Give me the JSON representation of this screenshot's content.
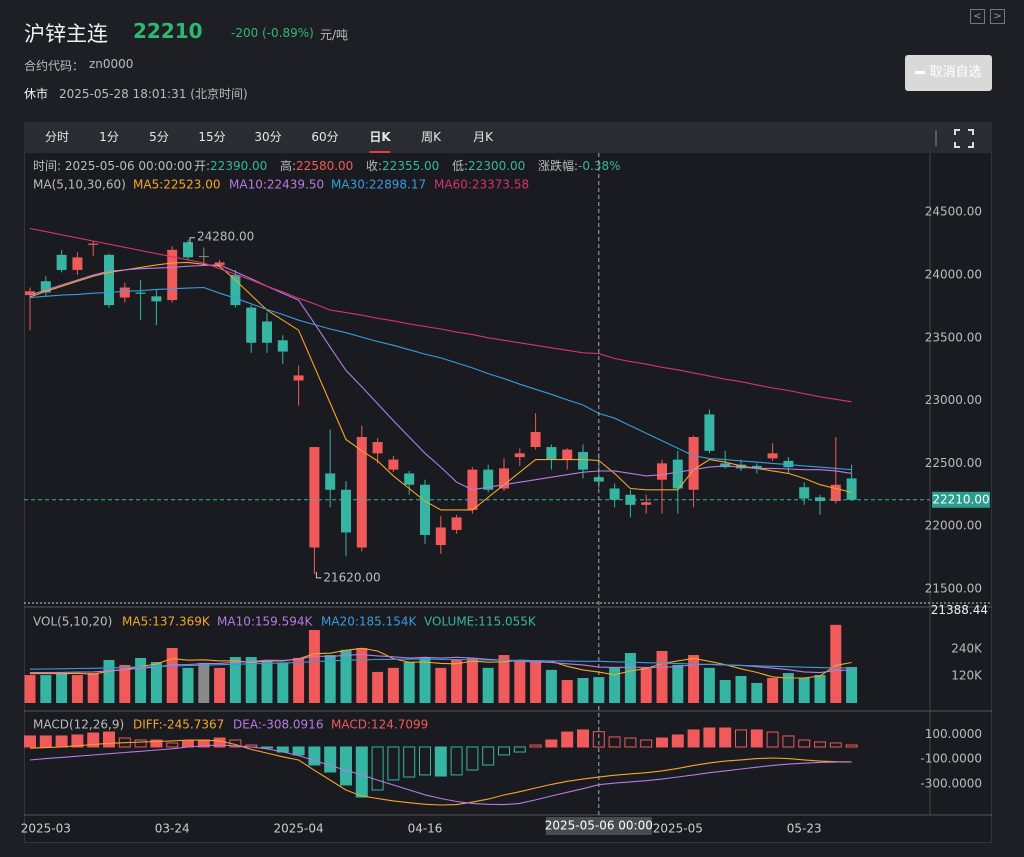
{
  "header": {
    "title": "沪锌主连",
    "price": "22210",
    "change": "-200 (-0.89%)",
    "unit": "元/吨",
    "code_label": "合约代码：",
    "code": "zn0000",
    "status": "休市",
    "time": "2025-05-28 18:01:31 (北京时间)",
    "button": "取消自选"
  },
  "tabs": [
    "分时",
    "1分",
    "5分",
    "15分",
    "30分",
    "60分",
    "日K",
    "周K",
    "月K"
  ],
  "active_tab": 6,
  "chart_data": [
    {
      "type": "candlestick",
      "up_color": "#f05a5a",
      "down_color": "#35b5a2",
      "flat_color": "#8a8a8a",
      "categories": [
        null,
        "2025-03",
        null,
        null,
        null,
        null,
        null,
        null,
        null,
        "03-24",
        null,
        null,
        null,
        null,
        null,
        null,
        null,
        "2025-04",
        null,
        null,
        null,
        null,
        null,
        null,
        null,
        "04-16",
        null,
        null,
        null,
        null,
        null,
        null,
        null,
        null,
        null,
        null,
        null,
        null,
        null,
        null,
        null,
        "2025-05",
        null,
        null,
        null,
        null,
        null,
        null,
        null,
        "05-23",
        null,
        null,
        null
      ],
      "open": [
        23840,
        23950,
        24160,
        24040,
        24240,
        24160,
        23820,
        23860,
        23830,
        23800,
        24260,
        24150,
        24080,
        24000,
        23740,
        23630,
        23480,
        23160,
        21830,
        22420,
        22290,
        21830,
        22580,
        22450,
        22420,
        22330,
        21850,
        21970,
        22130,
        22450,
        22300,
        22550,
        22630,
        22630,
        22530,
        22590,
        22390,
        22300,
        22250,
        22170,
        22370,
        22530,
        22290,
        22890,
        22500,
        22490,
        22480,
        22540,
        22520,
        22310,
        22230,
        22200,
        22380
      ],
      "high": [
        23900,
        23990,
        24200,
        24180,
        24270,
        24170,
        23940,
        23960,
        23880,
        24230,
        24280,
        24220,
        24120,
        24040,
        23760,
        23700,
        23520,
        23280,
        22630,
        22770,
        22360,
        22800,
        22700,
        22560,
        22440,
        22370,
        22080,
        22090,
        22470,
        22490,
        22540,
        22620,
        22900,
        22650,
        22620,
        22650,
        22580,
        22340,
        22290,
        22250,
        22530,
        22600,
        22720,
        22930,
        22600,
        22530,
        22500,
        22660,
        22550,
        22350,
        22250,
        22710,
        22490
      ],
      "low": [
        23560,
        23830,
        24020,
        24000,
        24150,
        23740,
        23780,
        23640,
        23600,
        23780,
        24120,
        24080,
        24060,
        23740,
        23380,
        23380,
        23290,
        22960,
        21620,
        22150,
        21760,
        21800,
        22500,
        22430,
        22250,
        21860,
        21780,
        21940,
        22100,
        22270,
        22280,
        22480,
        22610,
        22450,
        22450,
        22380,
        22300,
        22150,
        22070,
        22100,
        22100,
        22100,
        22150,
        22580,
        22460,
        22440,
        22420,
        22520,
        22420,
        22170,
        22090,
        22180,
        22200
      ],
      "close": [
        23870,
        23860,
        24040,
        24140,
        24250,
        23760,
        23900,
        23850,
        23790,
        24200,
        24140,
        24150,
        24100,
        23760,
        23460,
        23460,
        23390,
        23200,
        22630,
        22290,
        21950,
        22710,
        22670,
        22530,
        22330,
        21930,
        21990,
        22070,
        22450,
        22290,
        22460,
        22580,
        22750,
        22530,
        22610,
        22450,
        22355,
        22210,
        22170,
        22190,
        22500,
        22300,
        22710,
        22600,
        22470,
        22460,
        22460,
        22580,
        22470,
        22220,
        22200,
        22330,
        22210
      ],
      "ylim": [
        21388.44,
        24955
      ],
      "yticks": [
        {
          "value": 21388.44,
          "label": "21388.44"
        },
        {
          "value": 21500,
          "label": "21500.00"
        },
        {
          "value": 22000,
          "label": "22000.00"
        },
        {
          "value": 22500,
          "label": "22500.00"
        },
        {
          "value": 23000,
          "label": "23000.00"
        },
        {
          "value": 23500,
          "label": "23500.00"
        },
        {
          "value": 24000,
          "label": "24000.00"
        },
        {
          "value": 24500,
          "label": "24500.00"
        }
      ],
      "last_price": {
        "value": 22210,
        "label": "22210.00"
      },
      "high_label": "24280.00",
      "low_label": "21620.00",
      "selected_index": 36,
      "selected_label": "2025-05-06 00:00",
      "readout": [
        {
          "label": "时间: ",
          "value": "2025-05-06 00:00:00",
          "color": "#bbbbbb"
        },
        {
          "label": "开:",
          "value": "22390.00",
          "color": "#35b5a2"
        },
        {
          "label": "高:",
          "value": "22580.00",
          "color": "#f05a5a"
        },
        {
          "label": "收:",
          "value": "22355.00",
          "color": "#35b5a2"
        },
        {
          "label": "低:",
          "value": "22300.00",
          "color": "#35b5a2"
        },
        {
          "label": "涨跌幅:",
          "value": "-0.38%",
          "color": "#35b5a2"
        }
      ],
      "legend_title": "MA(5,10,30,60)",
      "series": [
        {
          "name": "MA5:22523.00",
          "color": "#f5a623",
          "values": [
            23825,
            23870,
            23910,
            23950,
            23990,
            24020,
            24040,
            24060,
            24080,
            24095,
            24100,
            24085,
            24070,
            23960,
            23840,
            23720,
            23640,
            23560,
            23270,
            22980,
            22690,
            22600,
            22520,
            22400,
            22300,
            22200,
            22130,
            22130,
            22130,
            22230,
            22330,
            22430,
            22530,
            22530,
            22530,
            22530,
            22523,
            22420,
            22300,
            22290,
            22290,
            22290,
            22450,
            22530,
            22510,
            22480,
            22460,
            22440,
            22420,
            22380,
            22330,
            22300,
            22270
          ]
        },
        {
          "name": "MA10:22439.50",
          "color": "#b57be0",
          "values": [
            23840,
            23880,
            23920,
            23960,
            24000,
            24030,
            24040,
            24050,
            24055,
            24060,
            24070,
            24075,
            24080,
            24025,
            23970,
            23910,
            23855,
            23800,
            23615,
            23425,
            23240,
            23110,
            22975,
            22840,
            22710,
            22580,
            22470,
            22350,
            22290,
            22310,
            22330,
            22350,
            22370,
            22390,
            22410,
            22430,
            22439.5,
            22440,
            22420,
            22400,
            22410,
            22430,
            22450,
            22470,
            22480,
            22470,
            22460,
            22460,
            22455,
            22450,
            22450,
            22440,
            22420
          ]
        },
        {
          "name": "MA30:22898.17",
          "color": "#3a9bdc",
          "values": [
            23820,
            23830,
            23840,
            23845,
            23855,
            23860,
            23870,
            23875,
            23885,
            23890,
            23895,
            23900,
            23855,
            23815,
            23770,
            23725,
            23685,
            23640,
            23605,
            23570,
            23540,
            23505,
            23470,
            23440,
            23405,
            23370,
            23340,
            23300,
            23260,
            23215,
            23175,
            23130,
            23090,
            23050,
            23005,
            22965,
            22898.17,
            22860,
            22800,
            22740,
            22680,
            22620,
            22560,
            22540,
            22530,
            22520,
            22510,
            22500,
            22490,
            22480,
            22470,
            22460,
            22450
          ]
        },
        {
          "name": "MA60:23373.58",
          "color": "#d6336c",
          "values": [
            24370,
            24345,
            24320,
            24295,
            24270,
            24245,
            24220,
            24195,
            24170,
            24145,
            24120,
            24095,
            24050,
            24005,
            23960,
            23910,
            23865,
            23815,
            23770,
            23720,
            23700,
            23680,
            23655,
            23635,
            23610,
            23590,
            23570,
            23545,
            23525,
            23500,
            23480,
            23460,
            23440,
            23420,
            23400,
            23380,
            23373.58,
            23335,
            23310,
            23290,
            23265,
            23245,
            23220,
            23195,
            23170,
            23150,
            23125,
            23100,
            23080,
            23055,
            23030,
            23010,
            22990
          ]
        }
      ]
    },
    {
      "type": "bar",
      "legend_title": "VOL(5,10,20)",
      "name": "VOLUME:115.055K",
      "values": [
        124,
        124,
        133,
        124,
        133,
        191,
        169,
        200,
        182,
        244,
        156,
        178,
        156,
        204,
        204,
        191,
        178,
        200,
        324,
        213,
        236,
        244,
        138,
        156,
        182,
        200,
        156,
        191,
        200,
        156,
        213,
        191,
        182,
        147,
        102,
        111,
        115.055,
        156,
        222,
        156,
        231,
        169,
        213,
        156,
        102,
        120,
        89,
        111,
        133,
        111,
        124,
        347,
        160
      ],
      "ylim": [
        0,
        404
      ],
      "yticks": [
        {
          "value": 120,
          "label": "120K"
        },
        {
          "value": 240,
          "label": "240K"
        }
      ],
      "series": [
        {
          "name": "MA5:137.369K",
          "color": "#f5a623",
          "values": [
            130,
            131,
            130,
            132,
            128,
            141,
            149,
            162,
            173,
            197,
            190,
            192,
            187,
            188,
            180,
            187,
            187,
            196,
            219,
            221,
            234,
            243,
            231,
            197,
            181,
            182,
            176,
            174,
            186,
            181,
            183,
            190,
            188,
            185,
            163,
            147,
            137.369,
            125,
            142,
            153,
            175,
            187,
            198,
            185,
            170,
            152,
            136,
            116,
            111,
            111,
            120,
            167,
            180
          ]
        },
        {
          "name": "MA10:159.594K",
          "color": "#b57be0",
          "values": [
            135,
            135,
            136,
            137,
            138,
            143,
            148,
            154,
            160,
            170,
            171,
            175,
            176,
            181,
            184,
            190,
            189,
            194,
            208,
            206,
            212,
            215,
            209,
            205,
            200,
            203,
            200,
            203,
            200,
            194,
            190,
            185,
            183,
            180,
            174,
            169,
            159.594,
            158,
            159,
            158,
            158,
            162,
            170,
            172,
            169,
            167,
            161,
            155,
            148,
            138,
            135,
            144,
            146
          ]
        },
        {
          "name": "MA20:185.154K",
          "color": "#3a9bdc",
          "values": [
            150,
            151,
            152,
            153,
            154,
            156,
            158,
            160,
            162,
            164,
            166,
            168,
            170,
            172,
            174,
            176,
            178,
            180,
            184,
            187,
            190,
            192,
            193,
            194,
            195,
            195,
            194,
            193,
            192,
            191,
            190,
            189,
            188,
            187,
            186,
            185,
            185.154,
            183,
            181,
            179,
            177,
            175,
            173,
            171,
            169,
            167,
            165,
            163,
            161,
            159,
            157,
            156,
            155
          ]
        }
      ]
    },
    {
      "type": "macd",
      "legend_title": "MACD(12,26,9)",
      "name": "MACD:124.7099",
      "up_color": "#f05a5a",
      "down_color": "#35b5a2",
      "values": [
        90,
        90,
        90,
        98,
        114,
        122,
        73,
        57,
        57,
        33,
        49,
        57,
        73,
        57,
        16,
        -8,
        -41,
        -65,
        -147,
        -204,
        -310,
        -408,
        -351,
        -269,
        -245,
        -228,
        -237,
        -228,
        -188,
        -147,
        -65,
        -41,
        16,
        57,
        122,
        139,
        124.7099,
        82,
        73,
        57,
        73,
        98,
        139,
        155,
        155,
        139,
        139,
        122,
        90,
        57,
        41,
        33,
        16
      ],
      "ylim": [
        -555,
        261
      ],
      "yticks": [
        {
          "value": -300,
          "label": "-300.0000"
        },
        {
          "value": -100,
          "label": "-100.0000"
        },
        {
          "value": 100,
          "label": "100.0000"
        }
      ],
      "series": [
        {
          "name": "DIFF:-245.7367",
          "color": "#f5a623",
          "values": [
            -10,
            -5,
            0,
            10,
            20,
            30,
            35,
            40,
            45,
            50,
            57,
            55,
            50,
            20,
            -20,
            -50,
            -80,
            -106,
            -190,
            -270,
            -351,
            -400,
            -420,
            -440,
            -455,
            -468,
            -473,
            -470,
            -450,
            -425,
            -392,
            -365,
            -335,
            -305,
            -280,
            -262,
            -245.7367,
            -230,
            -220,
            -210,
            -195,
            -175,
            -150,
            -130,
            -115,
            -105,
            -95,
            -90,
            -95,
            -105,
            -115,
            -120,
            -122
          ]
        },
        {
          "name": "DEA:-308.0916",
          "color": "#b57be0",
          "values": [
            -106,
            -95,
            -85,
            -75,
            -65,
            -55,
            -45,
            -35,
            -25,
            -15,
            0,
            10,
            16,
            10,
            0,
            -15,
            -40,
            -70,
            -110,
            -150,
            -190,
            -228,
            -270,
            -310,
            -350,
            -390,
            -420,
            -445,
            -460,
            -468,
            -470,
            -460,
            -432,
            -400,
            -370,
            -340,
            -308.0916,
            -295,
            -285,
            -275,
            -262,
            -245,
            -228,
            -210,
            -195,
            -180,
            -165,
            -150,
            -140,
            -132,
            -126,
            -123,
            -122
          ]
        }
      ]
    }
  ]
}
